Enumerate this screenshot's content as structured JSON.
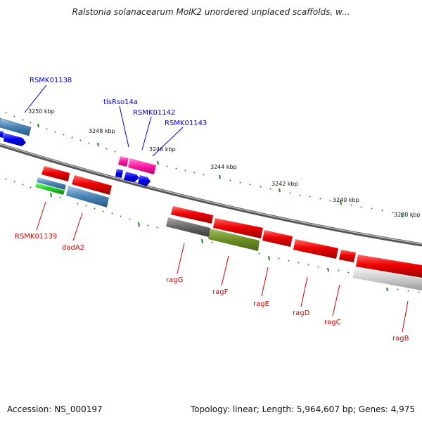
{
  "title": "Ralstonia solanacearum MolK2 unordered unplaced scaffolds, w...",
  "footer": {
    "accession": "Accession: NS_000197",
    "summary": "Topology: linear; Length: 5,964,607 bp; Genes: 4,975"
  },
  "colors": {
    "red": "#ee0000",
    "blue_label": "#0000cc",
    "red_label": "#cc0000",
    "tick_green": "#1a8a1a",
    "backbone": "#888888"
  },
  "scale_labels": [
    "3250 kbp",
    "3248 kbp",
    "3246 kbp",
    "3244 kbp",
    "3242 kbp",
    "3240 kbp",
    "3238 kbp"
  ],
  "top_labels": [
    "RSMK01138",
    "tlsRso14a",
    "RSMK01142",
    "RSMK01143"
  ],
  "bottom_labels": [
    "RSMK01139",
    "dadA2",
    "ragG",
    "ragF",
    "ragE",
    "ragD",
    "ragC",
    "ragB"
  ]
}
